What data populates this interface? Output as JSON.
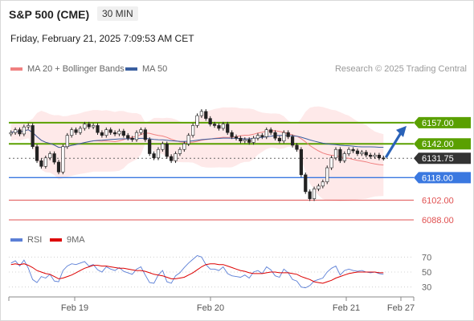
{
  "header": {
    "title": "S&P 500 (CME)",
    "timeframe": "30 MIN"
  },
  "timestamp": "Friday, February 21, 2025 7:09:53 AM CET",
  "legend": {
    "ma20_label": "MA 20 + Bollinger Bands",
    "ma50_label": "MA 50",
    "ma20_color": "#f08080",
    "ma50_color": "#3a5fa0",
    "credit": "Research © 2025 Trading Central"
  },
  "rsi_legend": {
    "rsi_label": "RSI",
    "ma_label": "9MA",
    "rsi_color": "#5b7fd6",
    "ma_color": "#dd0000"
  },
  "chart_data": [
    {
      "type": "candlestick",
      "y_range": [
        6080,
        6190
      ],
      "x_ticks": [
        "Feb 19",
        "Feb 20",
        "Feb 21",
        "Feb 27"
      ],
      "levels": [
        {
          "value": 6157.0,
          "label": "6157.00",
          "kind": "resistance",
          "color": "#5aa000"
        },
        {
          "value": 6142.0,
          "label": "6142.00",
          "kind": "resistance",
          "color": "#5aa000"
        },
        {
          "value": 6131.75,
          "label": "6131.75",
          "kind": "last",
          "color": "#333333"
        },
        {
          "value": 6118.0,
          "label": "6118.00",
          "kind": "support",
          "color": "#3a78e0"
        },
        {
          "value": 6102.0,
          "label": "6102.00",
          "kind": "support",
          "color": "#e05050"
        },
        {
          "value": 6088.0,
          "label": "6088.00",
          "kind": "support",
          "color": "#e05050"
        }
      ],
      "forecast_arrow": {
        "from": 6131.75,
        "to": 6157.0,
        "color": "#2a62b8"
      },
      "close": [
        6150,
        6152,
        6149,
        6154,
        6155,
        6140,
        6130,
        6126,
        6132,
        6135,
        6129,
        6122,
        6140,
        6148,
        6152,
        6150,
        6153,
        6156,
        6154,
        6155,
        6150,
        6148,
        6152,
        6150,
        6149,
        6151,
        6148,
        6146,
        6145,
        6150,
        6152,
        6145,
        6135,
        6132,
        6138,
        6142,
        6133,
        6130,
        6135,
        6138,
        6142,
        6148,
        6155,
        6162,
        6165,
        6160,
        6156,
        6155,
        6153,
        6156,
        6150,
        6147,
        6146,
        6144,
        6145,
        6143,
        6146,
        6148,
        6147,
        6152,
        6150,
        6146,
        6144,
        6150,
        6147,
        6141,
        6138,
        6120,
        6108,
        6103,
        6110,
        6112,
        6115,
        6125,
        6132,
        6138,
        6130,
        6135,
        6138,
        6137,
        6135,
        6136,
        6134,
        6133,
        6134,
        6132,
        6131.75
      ]
    },
    {
      "type": "line",
      "name": "RSI",
      "y_range": [
        20,
        80
      ],
      "y_ticks": [
        30,
        50,
        70
      ],
      "rsi": [
        62,
        65,
        58,
        66,
        55,
        40,
        36,
        44,
        42,
        47,
        38,
        37,
        52,
        58,
        61,
        60,
        62,
        64,
        58,
        60,
        53,
        50,
        57,
        54,
        52,
        56,
        51,
        49,
        47,
        54,
        57,
        46,
        36,
        35,
        46,
        52,
        37,
        35,
        45,
        49,
        56,
        62,
        67,
        72,
        70,
        60,
        54,
        54,
        52,
        57,
        48,
        45,
        44,
        43,
        46,
        42,
        50,
        52,
        48,
        57,
        53,
        45,
        43,
        54,
        49,
        40,
        38,
        30,
        29,
        32,
        38,
        40,
        42,
        50,
        55,
        58,
        46,
        52,
        54,
        52,
        51,
        52,
        50,
        49,
        50,
        48,
        47
      ],
      "ma9": [
        60,
        61,
        60,
        61,
        59,
        56,
        52,
        50,
        48,
        47,
        44,
        41,
        42,
        44,
        46,
        49,
        52,
        55,
        57,
        59,
        59,
        58,
        58,
        57,
        56,
        55,
        55,
        54,
        53,
        52,
        52,
        51,
        49,
        47,
        46,
        45,
        43,
        41,
        41,
        42,
        43,
        46,
        49,
        53,
        57,
        60,
        61,
        61,
        60,
        60,
        58,
        56,
        54,
        52,
        51,
        49,
        48,
        48,
        48,
        49,
        50,
        50,
        49,
        49,
        49,
        48,
        47,
        44,
        42,
        40,
        37,
        36,
        35,
        37,
        39,
        42,
        44,
        46,
        48,
        49,
        50,
        50,
        50,
        50,
        50,
        49,
        49
      ]
    }
  ]
}
